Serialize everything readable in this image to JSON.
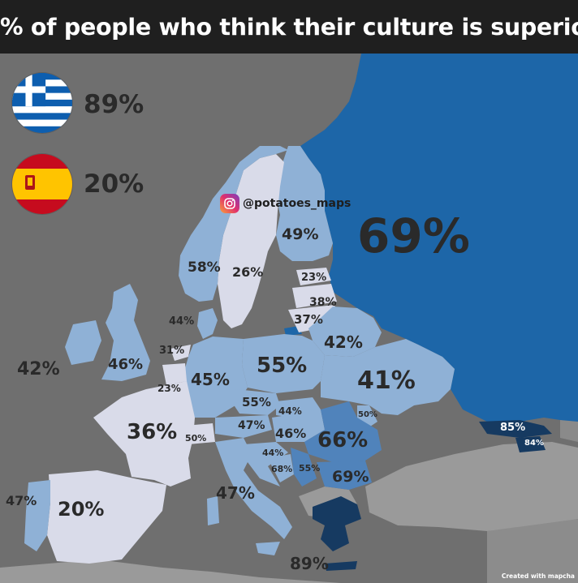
{
  "title": "% of people who think their culture is superior",
  "handle": "@potatoes_maps",
  "credit": "Created with mapcha",
  "flags": {
    "greece_pct": "89%",
    "spain_pct": "20%"
  },
  "legend_colors": {
    "lightest": "#d9dbe9",
    "light": "#8fb1d6",
    "medium": "#5083bb",
    "strong": "#1d66a8",
    "darkest": "#163a61",
    "no_data": "#9a9a9a",
    "sea": "#6f6f6f"
  },
  "regions": {
    "russia": "69%",
    "finland": "49%",
    "sweden": "26%",
    "norway": "58%",
    "estonia": "23%",
    "latvia": "38%",
    "lithuania": "37%",
    "denmark": "44%",
    "belarus": "42%",
    "poland": "55%",
    "ukraine": "41%",
    "germany": "45%",
    "netherlands": "31%",
    "belgium": "23%",
    "uk": "46%",
    "ireland": "42%",
    "france": "36%",
    "czechia": "55%",
    "slovakia": "44%",
    "moldova": "50%",
    "austria": "47%",
    "hungary": "46%",
    "romania": "66%",
    "switzerland": "50%",
    "croatia": "44%",
    "bosnia": "68%",
    "serbia": "55%",
    "bulgaria": "69%",
    "italy": "47%",
    "spain": "20%",
    "portugal": "47%",
    "greece": "89%",
    "georgia": "85%",
    "armenia": "84%"
  }
}
